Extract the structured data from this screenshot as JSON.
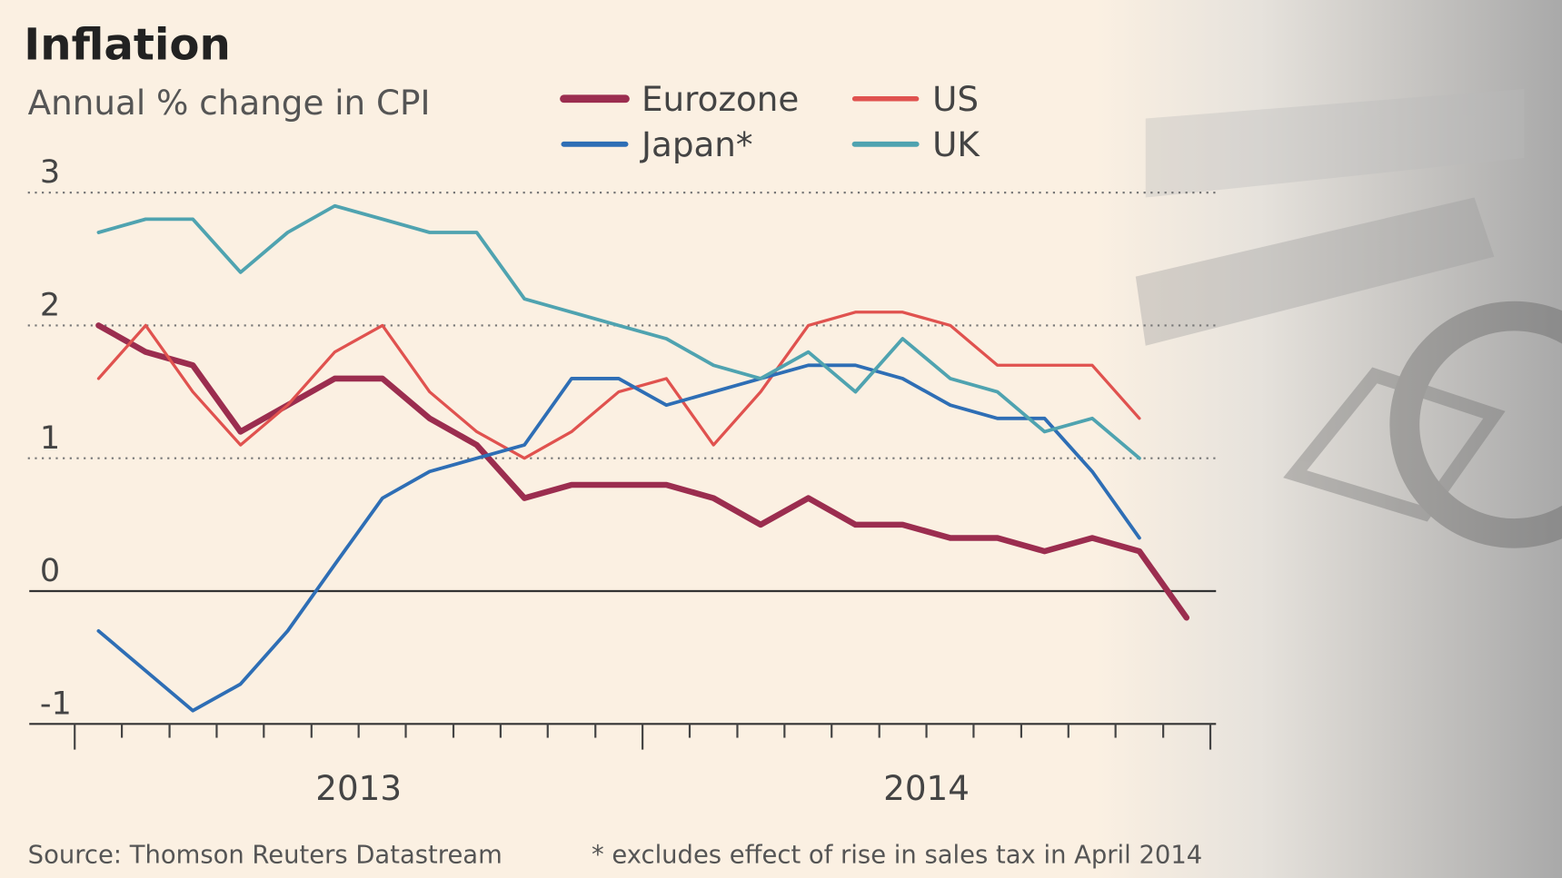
{
  "chart_data": {
    "type": "line",
    "title": "Inflation",
    "subtitle": "Annual % change in CPI",
    "source": "Source: Thomson Reuters Datastream",
    "note": "* excludes effect of rise in sales tax in April 2014",
    "x": [
      2013.042,
      2013.125,
      2013.208,
      2013.292,
      2013.375,
      2013.458,
      2013.542,
      2013.625,
      2013.708,
      2013.792,
      2013.875,
      2013.958,
      2014.042,
      2014.125,
      2014.208,
      2014.292,
      2014.375,
      2014.458,
      2014.542,
      2014.625,
      2014.708,
      2014.792,
      2014.875,
      2014.958
    ],
    "xlim": [
      2012.92,
      2015.01
    ],
    "xticks": [
      {
        "value": 2013.5,
        "label": "2013"
      },
      {
        "value": 2014.5,
        "label": "2014"
      }
    ],
    "xticks_minor": [
      2013,
      2013.083,
      2013.167,
      2013.25,
      2013.333,
      2013.417,
      2013.5,
      2013.583,
      2013.667,
      2013.75,
      2013.833,
      2013.917,
      2014,
      2014.083,
      2014.167,
      2014.25,
      2014.333,
      2014.417,
      2014.5,
      2014.583,
      2014.667,
      2014.75,
      2014.833,
      2014.917,
      2015
    ],
    "ylim": [
      -1,
      3
    ],
    "yticks": [
      -1,
      0,
      1,
      2,
      3
    ],
    "grid": true,
    "series": [
      {
        "name": "Eurozone",
        "color": "#9b2d4f",
        "width": 6,
        "values": [
          2.0,
          1.8,
          1.7,
          1.2,
          1.4,
          1.6,
          1.6,
          1.3,
          1.1,
          0.7,
          0.8,
          0.8,
          0.8,
          0.7,
          0.5,
          0.7,
          0.5,
          0.5,
          0.4,
          0.4,
          0.3,
          0.4,
          0.3,
          -0.2
        ]
      },
      {
        "name": "US",
        "color": "#e0524f",
        "width": 3,
        "values": [
          1.6,
          2.0,
          1.5,
          1.1,
          1.4,
          1.8,
          2.0,
          1.5,
          1.2,
          1.0,
          1.2,
          1.5,
          1.6,
          1.1,
          1.5,
          2.0,
          2.1,
          2.1,
          2.0,
          1.7,
          1.7,
          1.7,
          1.3,
          null
        ]
      },
      {
        "name": "Japan*",
        "color": "#2e6eb5",
        "width": 3.5,
        "values": [
          -0.3,
          -0.6,
          -0.9,
          -0.7,
          -0.3,
          0.2,
          0.7,
          0.9,
          1.0,
          1.1,
          1.6,
          1.6,
          1.4,
          1.5,
          1.6,
          1.7,
          1.7,
          1.6,
          1.4,
          1.3,
          1.3,
          0.9,
          0.4,
          null
        ]
      },
      {
        "name": "UK",
        "color": "#4fa3b0",
        "width": 3.5,
        "values": [
          2.7,
          2.8,
          2.8,
          2.4,
          2.7,
          2.9,
          2.8,
          2.7,
          2.7,
          2.2,
          2.1,
          2.0,
          1.9,
          1.7,
          1.6,
          1.8,
          1.5,
          1.9,
          1.6,
          1.5,
          1.2,
          1.3,
          1.0,
          null
        ]
      }
    ]
  }
}
